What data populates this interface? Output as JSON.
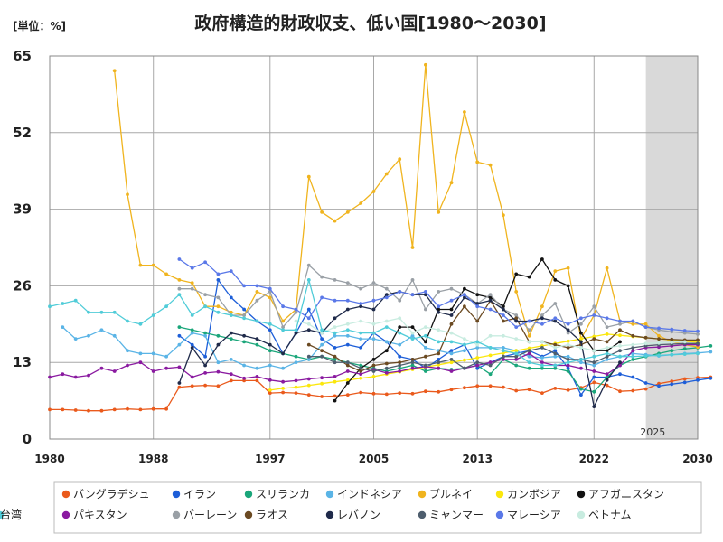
{
  "chart_data": {
    "type": "line",
    "title": "政府構造的財政収支、低い国[1980～2030]",
    "unit_label": "[単位：%]",
    "xlim": [
      1980,
      2030
    ],
    "ylim": [
      0,
      65
    ],
    "x_ticks": [
      "1980",
      "1988",
      "1997",
      "2005",
      "2013",
      "2022",
      "2030"
    ],
    "y_ticks": [
      "0",
      "13",
      "26",
      "39",
      "52",
      "65"
    ],
    "grid": true,
    "forecast_shade": {
      "from": 2026,
      "to": 2030
    },
    "annotation": "2025",
    "legend_position": "bottom",
    "series": [
      {
        "name": "バングラデシュ",
        "color": "#ea5a1c",
        "start": 1980,
        "values": [
          5.0,
          5.0,
          4.9,
          4.8,
          4.8,
          5.0,
          5.1,
          5.0,
          5.1,
          5.1,
          8.8,
          9.0,
          9.1,
          9.0,
          9.9,
          9.9,
          9.9,
          7.8,
          7.9,
          7.8,
          7.5,
          7.2,
          7.3,
          7.5,
          7.9,
          7.7,
          7.6,
          7.8,
          7.7,
          8.1,
          8.0,
          8.4,
          8.7,
          9.0,
          9.0,
          8.8,
          8.2,
          8.4,
          7.8,
          8.6,
          8.3,
          8.7,
          9.6,
          9.1,
          8.1,
          8.2,
          8.5,
          9.4,
          9.8,
          10.2,
          10.4,
          10.5
        ]
      },
      {
        "name": "イラン",
        "color": "#1d5ed8",
        "start": 1990,
        "values": [
          17.5,
          16.0,
          14.0,
          27.0,
          24.0,
          22.0,
          20.0,
          18.5,
          14.5,
          18.0,
          22.0,
          17.0,
          15.5,
          16.0,
          15.5,
          18.0,
          16.5,
          14.0,
          13.5,
          12.0,
          13.5,
          15.0,
          16.0,
          12.0,
          13.0,
          14.0,
          14.5,
          15.0,
          14.0,
          15.0,
          12.0,
          7.5,
          10.5,
          10.5,
          11.0,
          10.5,
          9.5,
          9.0,
          9.3,
          9.6,
          10.0,
          10.3
        ]
      },
      {
        "name": "スリランカ",
        "color": "#1aa67a",
        "start": 1990,
        "values": [
          19.0,
          18.5,
          18.0,
          17.5,
          17.0,
          16.5,
          16.0,
          15.0,
          14.5,
          14.0,
          13.5,
          14.0,
          13.5,
          13.0,
          12.5,
          12.0,
          11.5,
          12.0,
          12.5,
          11.5,
          12.0,
          11.8,
          12.0,
          12.5,
          11.0,
          13.5,
          12.5,
          12.0,
          12.0,
          12.0,
          11.5,
          8.5,
          8.0,
          10.5,
          12.5,
          13.5,
          14.0,
          14.5,
          15.0,
          15.3,
          15.5,
          15.8
        ]
      },
      {
        "name": "インドネシア",
        "color": "#5ab4e6",
        "start": 1981,
        "values": [
          19.0,
          17.0,
          17.5,
          18.5,
          17.5,
          15.0,
          14.5,
          14.5,
          14.0,
          16.0,
          18.0,
          17.5,
          13.0,
          13.5,
          12.5,
          12.0,
          12.5,
          12.0,
          13.0,
          13.5,
          16.0,
          17.5,
          17.5,
          17.0,
          17.0,
          16.5,
          16.0,
          17.5,
          15.5,
          15.0,
          14.5,
          15.0,
          15.5,
          15.5,
          15.5,
          15.0,
          14.0,
          13.8,
          14.0,
          14.0,
          13.0,
          12.5,
          13.5,
          14.0,
          14.5,
          14.3,
          14.1,
          14.3,
          14.5,
          14.6,
          14.8
        ]
      },
      {
        "name": "ブルネイ",
        "color": "#f0b41e",
        "start": 1985,
        "values": [
          62.5,
          41.5,
          29.5,
          29.5,
          28.0,
          27.0,
          26.5,
          22.5,
          22.5,
          21.5,
          21.0,
          25.0,
          24.0,
          20.0,
          22.0,
          44.5,
          38.5,
          37.0,
          38.5,
          40.0,
          42.0,
          45.0,
          47.5,
          32.5,
          63.5,
          38.5,
          43.5,
          55.5,
          47.0,
          46.5,
          38.0,
          25.0,
          17.5,
          22.5,
          28.5,
          29.0,
          17.0,
          21.0,
          29.0,
          20.0,
          19.5,
          19.5,
          17.5,
          16.5,
          16.0,
          15.6
        ]
      },
      {
        "name": "カンボジア",
        "color": "#fbe70c",
        "start": 1997,
        "values": [
          8.3,
          8.6,
          8.8,
          9.1,
          9.4,
          9.7,
          10.0,
          10.3,
          10.6,
          11.0,
          11.4,
          11.8,
          12.2,
          12.6,
          13.0,
          13.4,
          13.8,
          14.2,
          14.6,
          15.0,
          15.4,
          15.8,
          16.2,
          16.6,
          17.0,
          17.4,
          17.8,
          17.6,
          17.4,
          17.2,
          17.0,
          16.8,
          16.6,
          16.4
        ]
      },
      {
        "name": "アフガニスタン",
        "color": "#111111",
        "start": 2002,
        "values": [
          6.5,
          9.5,
          12.0,
          13.5,
          15.0,
          19.0,
          19.0,
          16.5,
          22.0,
          22.0,
          25.5,
          24.5,
          24.0,
          22.5,
          28.0,
          27.5,
          30.5,
          27.0,
          26.0,
          18.0,
          15.0,
          15.0,
          16.5
        ]
      },
      {
        "name": "パキスタン",
        "color": "#8a1aa0",
        "start": 1980,
        "values": [
          10.5,
          11.0,
          10.5,
          10.8,
          12.0,
          11.5,
          12.5,
          13.0,
          11.5,
          12.0,
          12.2,
          10.5,
          11.2,
          11.4,
          11.0,
          10.3,
          10.6,
          10.0,
          9.7,
          9.9,
          10.2,
          10.4,
          10.6,
          11.5,
          11.0,
          11.8,
          11.2,
          11.5,
          12.0,
          12.3,
          12.0,
          11.5,
          12.0,
          12.5,
          13.0,
          13.5,
          13.5,
          14.5,
          13.0,
          12.5,
          12.5,
          12.0,
          11.5,
          11.0,
          12.5,
          15.0,
          15.5,
          15.6,
          15.8,
          16.0,
          16.0
        ]
      },
      {
        "name": "バーレーン",
        "color": "#9aa0a6",
        "start": 1990,
        "values": [
          25.5,
          25.5,
          24.5,
          24.0,
          21.0,
          21.0,
          23.5,
          25.0,
          19.0,
          21.5,
          29.5,
          27.5,
          27.0,
          26.5,
          25.5,
          26.5,
          25.5,
          23.5,
          27.0,
          22.0,
          25.0,
          25.5,
          24.5,
          23.0,
          24.5,
          22.0,
          21.0,
          18.5,
          21.0,
          23.0,
          18.0,
          19.5,
          22.5,
          19.0,
          19.5,
          20.0,
          19.0,
          18.5,
          18.2,
          18.0,
          17.8
        ]
      },
      {
        "name": "ラオス",
        "color": "#6b4a22",
        "start": 2000,
        "values": [
          16.0,
          15.0,
          14.0,
          12.5,
          11.5,
          12.5,
          12.8,
          13.0,
          13.5,
          14.0,
          14.5,
          19.5,
          22.5,
          20.0,
          23.5,
          20.0,
          20.5,
          16.5,
          16.5,
          16.0,
          15.5,
          16.0,
          17.0,
          16.5,
          18.5,
          17.5,
          17.2,
          17.0,
          16.9,
          16.8,
          16.8
        ]
      },
      {
        "name": "レバノン",
        "color": "#1f2a4a",
        "start": 1990,
        "values": [
          9.5,
          15.5,
          12.5,
          16.0,
          18.0,
          17.5,
          17.0,
          16.0,
          14.5,
          18.0,
          18.5,
          18.0,
          20.5,
          22.0,
          22.5,
          22.0,
          24.5,
          25.0,
          24.5,
          24.5,
          21.5,
          21.0,
          24.0,
          23.0,
          23.5,
          22.0,
          20.0,
          20.0,
          20.5,
          20.0,
          18.5,
          16.5,
          5.5,
          10.0,
          13.0
        ]
      },
      {
        "name": "ミャンマー",
        "color": "#4e5e6e",
        "start": 2000,
        "values": [
          14.0,
          14.0,
          13.0,
          13.0,
          12.0,
          11.5,
          12.0,
          12.5,
          13.0,
          12.5,
          13.0,
          13.5,
          12.0,
          13.0,
          12.5,
          14.0,
          14.0,
          15.0,
          15.5,
          14.5,
          13.5,
          13.5,
          13.0,
          14.0,
          15.0,
          15.5,
          15.8,
          16.0,
          16.1,
          16.2,
          16.2
        ]
      },
      {
        "name": "マレーシア",
        "color": "#5a78e8",
        "start": 1990,
        "values": [
          30.5,
          29.0,
          30.0,
          28.0,
          28.5,
          26.0,
          26.0,
          25.5,
          22.5,
          22.0,
          20.5,
          24.0,
          23.5,
          23.5,
          23.0,
          23.5,
          24.0,
          25.0,
          24.5,
          25.0,
          22.5,
          23.5,
          24.5,
          22.5,
          22.0,
          21.0,
          19.0,
          20.0,
          19.5,
          20.5,
          19.5,
          20.5,
          21.0,
          20.5,
          20.0,
          20.0,
          19.0,
          18.8,
          18.6,
          18.4,
          18.3
        ]
      },
      {
        "name": "ベトナム",
        "color": "#c8ece0",
        "start": 1999,
        "values": [
          20.0,
          19.5,
          18.0,
          19.0,
          19.5,
          20.0,
          19.5,
          20.0,
          20.5,
          18.0,
          19.0,
          18.5,
          18.0,
          17.0,
          16.0,
          17.5,
          17.5,
          17.0,
          16.5,
          16.5,
          15.5,
          16.0,
          15.5,
          15.0,
          15.5,
          15.8,
          16.0,
          16.2,
          16.3,
          16.4,
          16.5
        ]
      },
      {
        "name": "台湾",
        "color": "#50ccd8",
        "start": 1980,
        "values": [
          22.5,
          23.0,
          23.5,
          21.5,
          21.5,
          21.5,
          20.0,
          19.5,
          21.0,
          22.5,
          24.5,
          21.0,
          22.5,
          21.5,
          21.0,
          20.5,
          20.0,
          19.5,
          18.5,
          18.5,
          27.0,
          18.5,
          18.0,
          18.5,
          18.0,
          18.0,
          19.0,
          18.0,
          17.0,
          17.5,
          16.5,
          16.5,
          16.0,
          16.5,
          15.5,
          15.0,
          14.5,
          13.0,
          12.5,
          12.5,
          13.0,
          13.5,
          14.0,
          14.5,
          14.0,
          14.0,
          14.1,
          14.2,
          14.3,
          14.4,
          14.5
        ]
      }
    ]
  }
}
